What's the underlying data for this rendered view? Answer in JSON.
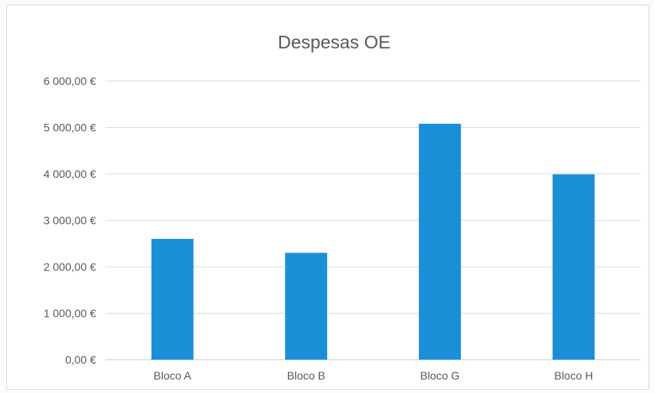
{
  "chart_data": {
    "type": "bar",
    "title": "Despesas OE",
    "xlabel": "",
    "ylabel": "",
    "categories": [
      "Bloco A",
      "Bloco B",
      "Bloco G",
      "Bloco H"
    ],
    "values": [
      2600,
      2300,
      5080,
      3990
    ],
    "ylim": [
      0,
      6000
    ],
    "yticks": [
      0,
      1000,
      2000,
      3000,
      4000,
      5000,
      6000
    ],
    "ytick_labels": [
      "0,00 €",
      "1 000,00 €",
      "2 000,00 €",
      "3 000,00 €",
      "4 000,00 €",
      "5 000,00 €",
      "6 000,00 €"
    ],
    "bar_color": "#1a8fd8",
    "grid": true,
    "legend": "none"
  }
}
